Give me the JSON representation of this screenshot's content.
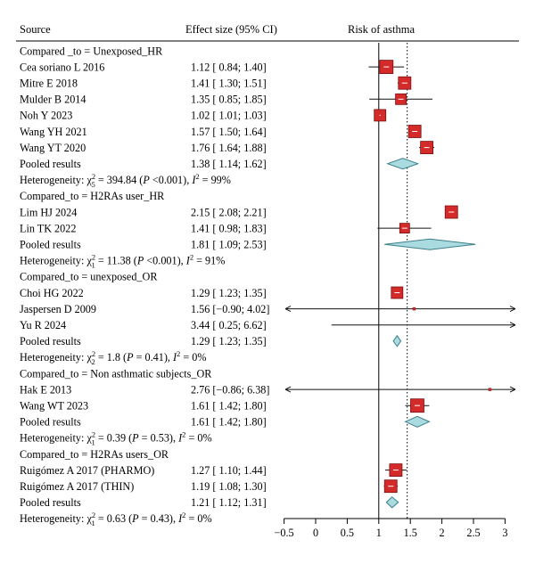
{
  "headers": {
    "source": "Source",
    "effect": "Effect size (95% CI)",
    "risk": "Risk of asthma"
  },
  "colors": {
    "box_fill": "#d42a2a",
    "box_stroke": "#7a1010",
    "diamond_fill": "#a9dbe0",
    "diamond_stroke": "#3b7f88",
    "ci_line": "#111111",
    "null_line": "#000000"
  },
  "chart_data": {
    "type": "forest",
    "xlim": [
      -0.5,
      3.1
    ],
    "xticks": [
      -0.5,
      0,
      0.5,
      1,
      1.5,
      2,
      2.5,
      3
    ],
    "xtick_labels": [
      "−0.5",
      "0",
      "0.5",
      "1",
      "1.5",
      "2",
      "2.5",
      "3"
    ],
    "reference_line": 1,
    "overall_line": 1.45,
    "rows": [
      {
        "kind": "group",
        "label": "Compared _to = Unexposed_HR"
      },
      {
        "kind": "study",
        "label": "Cea soriano L 2016",
        "ci_text": "1.12 [ 0.84; 1.40]",
        "est": 1.12,
        "lo": 0.84,
        "hi": 1.4,
        "box": 15
      },
      {
        "kind": "study",
        "label": "Mitre E 2018",
        "ci_text": "1.41 [ 1.30; 1.51]",
        "est": 1.41,
        "lo": 1.3,
        "hi": 1.51,
        "box": 14
      },
      {
        "kind": "study",
        "label": "Mulder B 2014",
        "ci_text": "1.35 [ 0.85; 1.85]",
        "est": 1.35,
        "lo": 0.85,
        "hi": 1.85,
        "box": 12
      },
      {
        "kind": "study",
        "label": "Noh Y 2023",
        "ci_text": "1.02 [ 1.01; 1.03]",
        "est": 1.02,
        "lo": 1.01,
        "hi": 1.03,
        "box": 13
      },
      {
        "kind": "study",
        "label": "Wang YH 2021",
        "ci_text": "1.57 [ 1.50; 1.64]",
        "est": 1.57,
        "lo": 1.5,
        "hi": 1.64,
        "box": 14
      },
      {
        "kind": "study",
        "label": "Wang YT 2020",
        "ci_text": "1.76 [ 1.64; 1.88]",
        "est": 1.76,
        "lo": 1.64,
        "hi": 1.88,
        "box": 14
      },
      {
        "kind": "pooled",
        "label": "Pooled results",
        "ci_text": "1.38 [ 1.14; 1.62]",
        "est": 1.38,
        "lo": 1.14,
        "hi": 1.62
      },
      {
        "kind": "het",
        "pre": "Heterogeneity: χ",
        "sub": "5",
        "sup": "2",
        "post": " = 394.84 (",
        "p": "P",
        "post2": " <0.001), ",
        "i": "I",
        "isup": "2",
        "post3": " = 99%"
      },
      {
        "kind": "group",
        "label": "Compared_to = H2RAs user_HR"
      },
      {
        "kind": "study",
        "label": "Lim HJ 2024",
        "ci_text": "2.15 [ 2.08; 2.21]",
        "est": 2.15,
        "lo": 2.08,
        "hi": 2.21,
        "box": 14
      },
      {
        "kind": "study",
        "label": "Lin TK 2022",
        "ci_text": "1.41 [ 0.98; 1.83]",
        "est": 1.41,
        "lo": 0.98,
        "hi": 1.83,
        "box": 11
      },
      {
        "kind": "pooled",
        "label": "Pooled results",
        "ci_text": "1.81 [ 1.09; 2.53]",
        "est": 1.81,
        "lo": 1.09,
        "hi": 2.53
      },
      {
        "kind": "het",
        "pre": "Heterogeneity: χ",
        "sub": "1",
        "sup": "2",
        "post": " = 11.38 (",
        "p": "P",
        "post2": " <0.001), ",
        "i": "I",
        "isup": "2",
        "post3": " = 91%"
      },
      {
        "kind": "group",
        "label": "Compared_to = unexposed_OR"
      },
      {
        "kind": "study",
        "label": "Choi HG 2022",
        "ci_text": "1.29 [ 1.23; 1.35]",
        "est": 1.29,
        "lo": 1.23,
        "hi": 1.35,
        "box": 13
      },
      {
        "kind": "study",
        "label": "Jaspersen D 2009",
        "ci_text": "1.56 [−0.90; 4.02]",
        "est": 1.56,
        "lo": -0.9,
        "hi": 4.02,
        "box": 3
      },
      {
        "kind": "study",
        "label": "Yu R 2024",
        "ci_text": "3.44 [ 0.25; 6.62]",
        "est": 3.44,
        "lo": 0.25,
        "hi": 6.62,
        "box": 2
      },
      {
        "kind": "pooled",
        "label": "Pooled results",
        "ci_text": "1.29 [ 1.23; 1.35]",
        "est": 1.29,
        "lo": 1.23,
        "hi": 1.35
      },
      {
        "kind": "het",
        "pre": "Heterogeneity: χ",
        "sub": "2",
        "sup": "2",
        "post": " = 1.8 (",
        "p": "P",
        "post2": " = 0.41), ",
        "i": "I",
        "isup": "2",
        "post3": " = 0%"
      },
      {
        "kind": "group",
        "label": "Compared_to = Non asthmatic subjects_OR"
      },
      {
        "kind": "study",
        "label": "Hak E 2013",
        "ci_text": "2.76 [−0.86; 6.38]",
        "est": 2.76,
        "lo": -0.86,
        "hi": 6.38,
        "box": 3
      },
      {
        "kind": "study",
        "label": "Wang WT 2023",
        "ci_text": "1.61 [ 1.42; 1.80]",
        "est": 1.61,
        "lo": 1.42,
        "hi": 1.8,
        "box": 15
      },
      {
        "kind": "pooled",
        "label": "Pooled results",
        "ci_text": "1.61 [ 1.42; 1.80]",
        "est": 1.61,
        "lo": 1.42,
        "hi": 1.8
      },
      {
        "kind": "het",
        "pre": "Heterogeneity: χ",
        "sub": "1",
        "sup": "2",
        "post": " = 0.39 (",
        "p": "P",
        "post2": " = 0.53), ",
        "i": "I",
        "isup": "2",
        "post3": " = 0%"
      },
      {
        "kind": "group",
        "label": "Compared_to = H2RAs users_OR"
      },
      {
        "kind": "study",
        "label": "Ruigómez A 2017 (PHARMO)",
        "ci_text": "1.27 [ 1.10; 1.44]",
        "est": 1.27,
        "lo": 1.1,
        "hi": 1.44,
        "box": 14
      },
      {
        "kind": "study",
        "label": "Ruigómez A 2017 (THIN)",
        "ci_text": "1.19 [ 1.08; 1.30]",
        "est": 1.19,
        "lo": 1.08,
        "hi": 1.3,
        "box": 14
      },
      {
        "kind": "pooled",
        "label": "Pooled results",
        "ci_text": "1.21 [ 1.12; 1.31]",
        "est": 1.21,
        "lo": 1.12,
        "hi": 1.31
      },
      {
        "kind": "het",
        "pre": "Heterogeneity: χ",
        "sub": "1",
        "sup": "2",
        "post": " = 0.63 (",
        "p": "P",
        "post2": " = 0.43), ",
        "i": "I",
        "isup": "2",
        "post3": " = 0%"
      }
    ]
  }
}
